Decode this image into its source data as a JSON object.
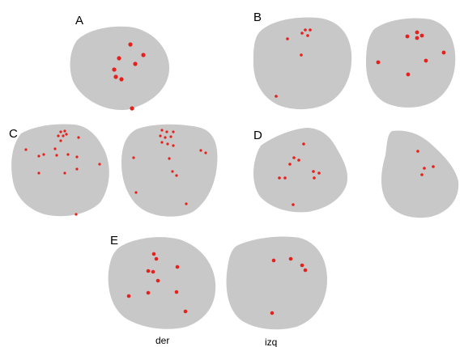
{
  "panels": [
    {
      "letter": "A"
    },
    {
      "letter": "B"
    },
    {
      "letter": "C"
    },
    {
      "letter": "D"
    },
    {
      "letter": "E"
    }
  ],
  "column_labels": {
    "right": "der",
    "left": "izq"
  },
  "colors": {
    "section": "#c8c8c8",
    "marker": "#e8201c",
    "background": "#ffffff"
  }
}
